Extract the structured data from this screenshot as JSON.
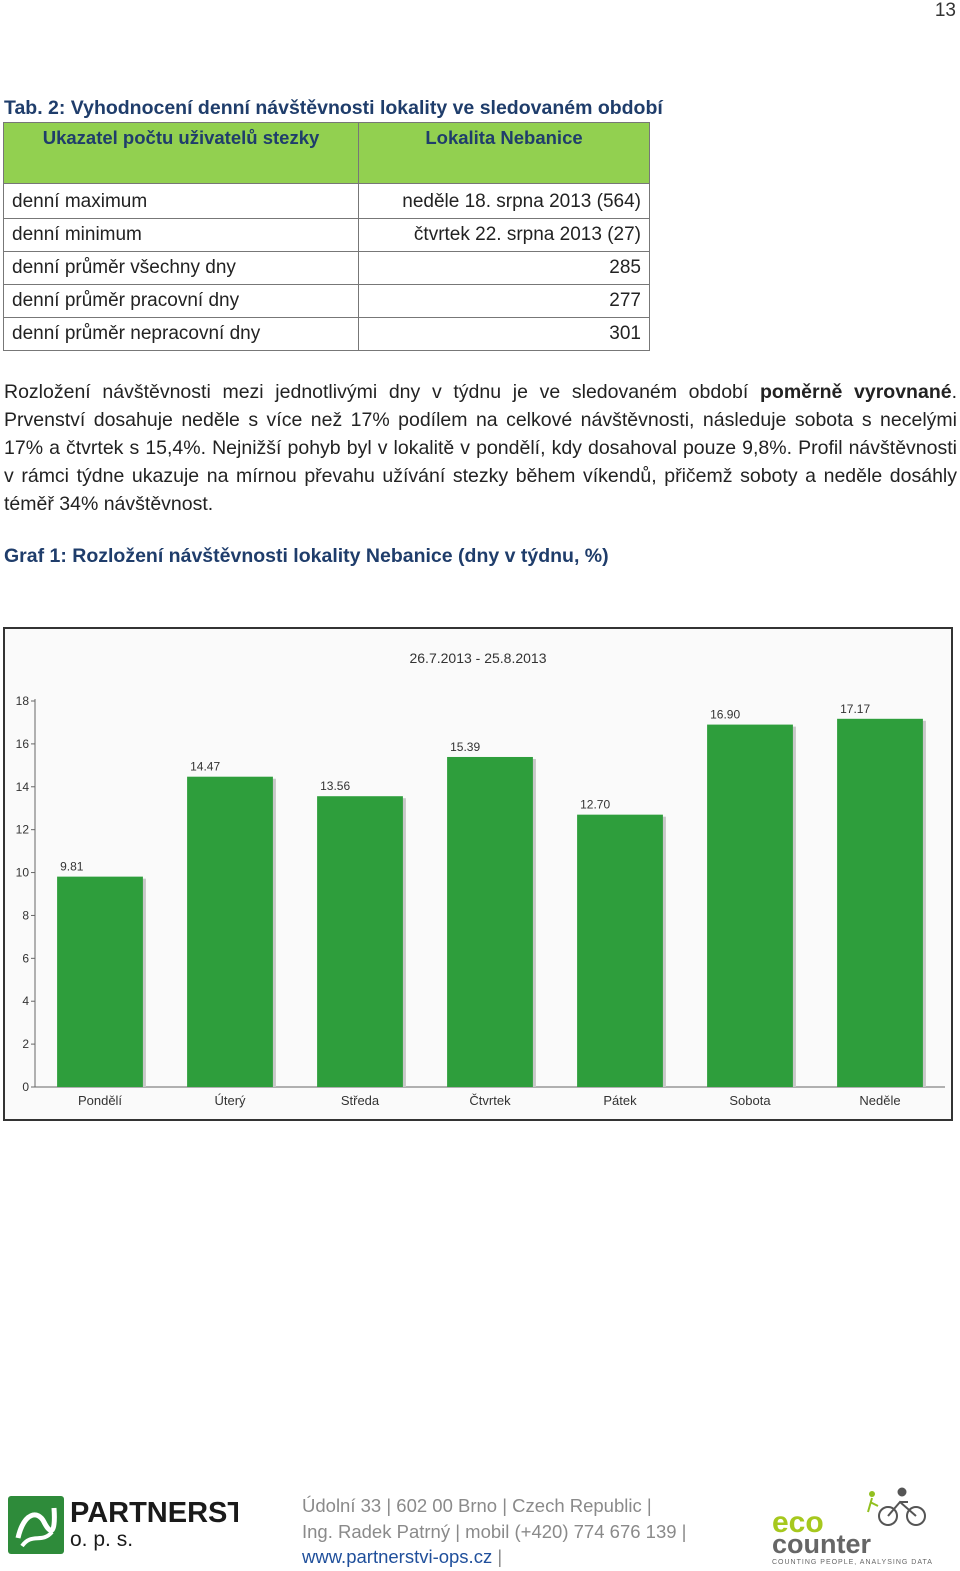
{
  "page": {
    "number": "13"
  },
  "table": {
    "caption": "Tab. 2: Vyhodnocení denní návštěvnosti lokality ve sledovaném období",
    "headers": [
      "Ukazatel počtu uživatelů stezky",
      "Lokalita Nebanice"
    ],
    "rows": [
      {
        "label": "denní maximum",
        "value": "neděle 18. srpna 2013 (564)"
      },
      {
        "label": "denní minimum",
        "value": "čtvrtek 22. srpna 2013 (27)"
      },
      {
        "label": "denní průměr všechny dny",
        "value": "285"
      },
      {
        "label": "denní průměr pracovní dny",
        "value": "277"
      },
      {
        "label": "denní průměr nepracovní dny",
        "value": "301"
      }
    ]
  },
  "paragraph": {
    "part1": "Rozložení návštěvnosti mezi jednotlivými dny v týdnu je ve sledovaném období ",
    "bold": "poměrně vyrovnané",
    "part2": ". Prvenství dosahuje neděle s více než 17% podílem na celkové návštěvnosti, následuje sobota s necelými 17% a čtvrtek s 15,4%. Nejnižší pohyb byl v lokalitě v pondělí, kdy dosahoval pouze 9,8%. Profil návštěvnosti v rámci týdne ukazuje na mírnou převahu užívání stezky během víkendů, přičemž soboty a neděle dosáhly téměř 34% návštěvnost."
  },
  "graph_caption": "Graf 1: Rozložení návštěvnosti lokality Nebanice (dny v týdnu, %)",
  "chart_data": {
    "type": "bar",
    "title": "26.7.2013 - 25.8.2013",
    "categories": [
      "Pondělí",
      "Úterý",
      "Středa",
      "Čtvrtek",
      "Pátek",
      "Sobota",
      "Neděle"
    ],
    "values": [
      9.81,
      14.47,
      13.56,
      15.39,
      12.7,
      16.9,
      17.17
    ],
    "value_labels": [
      "9.81",
      "14.47",
      "13.56",
      "15.39",
      "12.70",
      "16.90",
      "17.17"
    ],
    "yticks": [
      "0",
      "2",
      "4",
      "6",
      "8",
      "10",
      "12",
      "14",
      "16",
      "18"
    ],
    "ylim": [
      0,
      18
    ],
    "xlabel": "",
    "ylabel": "",
    "grid": false,
    "bar_color": "#2e9e3c"
  },
  "footer": {
    "logo_name": "PARTNERSTVÍ",
    "logo_sub": "o. p. s.",
    "address_line1": "Údolní 33 | 602 00 Brno | Czech Republic |",
    "address_line2": "Ing. Radek Patrný | mobil (+420) 774 676 139 |",
    "url": "www.partnerstvi-ops.cz",
    "url_suffix": " |",
    "eco_word": "eco",
    "counter_word": "counter",
    "eco_tagline": "COUNTING PEOPLE, ANALYSING DATA"
  }
}
